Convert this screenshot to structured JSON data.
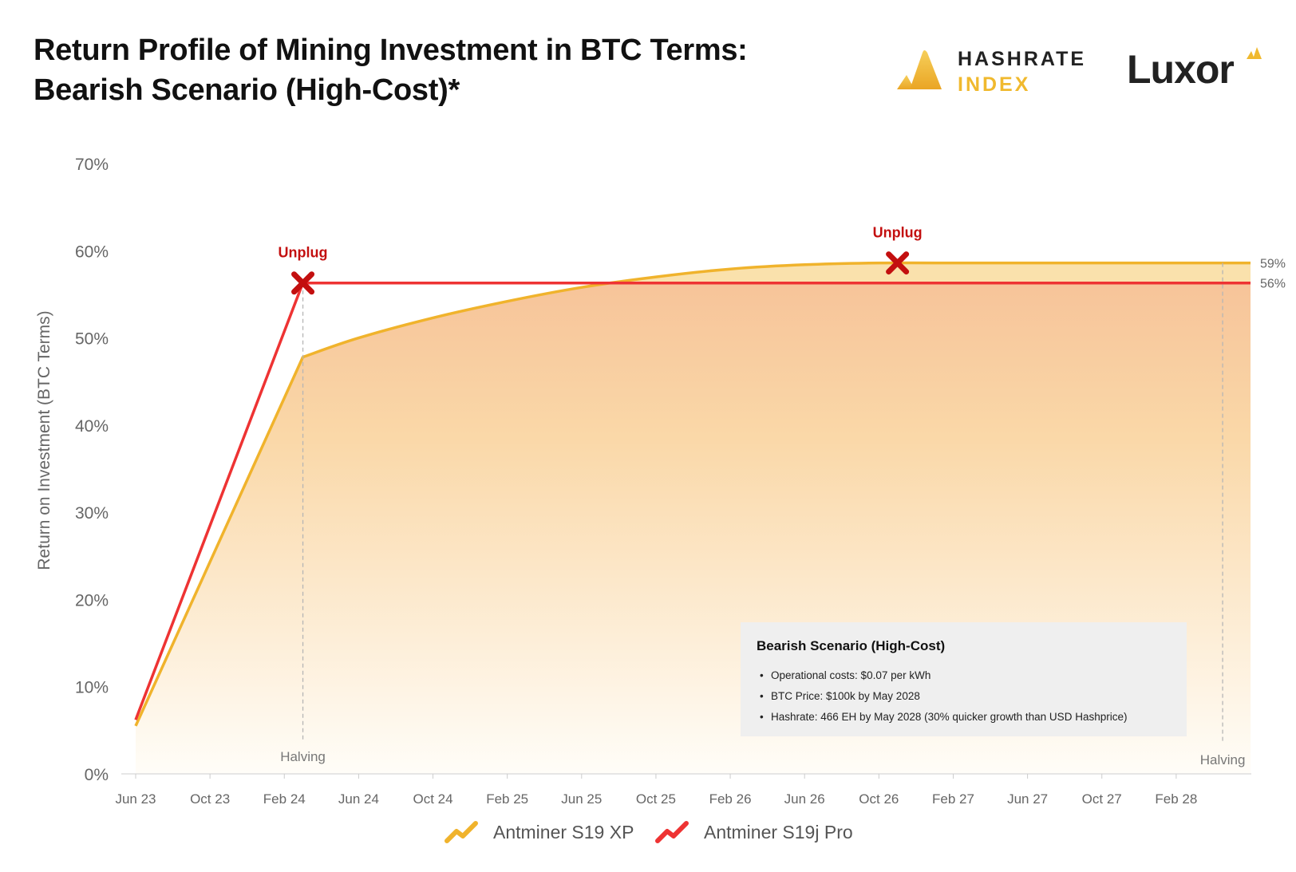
{
  "title": {
    "line1": "Return Profile of Mining Investment in BTC Terms:",
    "line2": "Bearish Scenario (High-Cost)*"
  },
  "brands": {
    "hashrate_line1": "HASHRATE",
    "hashrate_line2": "INDEX",
    "luxor": "Luxor"
  },
  "colors": {
    "s19xp": "#f0b32c",
    "s19jpro": "#ee3333",
    "unplug": "#c30f0f",
    "axis_text": "#666666"
  },
  "chart_data": {
    "type": "line",
    "ylabel": "Return on Investment (BTC Terms)",
    "ylim": [
      0,
      70
    ],
    "y_ticks": [
      "0%",
      "10%",
      "20%",
      "30%",
      "40%",
      "50%",
      "60%",
      "70%"
    ],
    "x_range_months": [
      0,
      60
    ],
    "x_ticks": [
      {
        "label": "Jun 23",
        "month": 0
      },
      {
        "label": "Oct 23",
        "month": 4
      },
      {
        "label": "Feb 24",
        "month": 8
      },
      {
        "label": "Jun 24",
        "month": 12
      },
      {
        "label": "Oct 24",
        "month": 16
      },
      {
        "label": "Feb 25",
        "month": 20
      },
      {
        "label": "Jun 25",
        "month": 24
      },
      {
        "label": "Oct 25",
        "month": 28
      },
      {
        "label": "Feb 26",
        "month": 32
      },
      {
        "label": "Jun 26",
        "month": 36
      },
      {
        "label": "Oct 26",
        "month": 40
      },
      {
        "label": "Feb 27",
        "month": 44
      },
      {
        "label": "Jun 27",
        "month": 48
      },
      {
        "label": "Oct 27",
        "month": 52
      },
      {
        "label": "Feb 28",
        "month": 56
      }
    ],
    "series": [
      {
        "name": "Antminer S19 XP",
        "points": [
          [
            0,
            5.5
          ],
          [
            9,
            47.8
          ],
          [
            12,
            50.0
          ],
          [
            16,
            52.3
          ],
          [
            20,
            54.2
          ],
          [
            24,
            55.8
          ],
          [
            28,
            57.0
          ],
          [
            32,
            57.9
          ],
          [
            36,
            58.4
          ],
          [
            40,
            58.6
          ],
          [
            44,
            58.6
          ],
          [
            60,
            58.6
          ]
        ],
        "end_label": "59%"
      },
      {
        "name": "Antminer S19j Pro",
        "points": [
          [
            0,
            6.2
          ],
          [
            9,
            56.3
          ],
          [
            60,
            56.3
          ]
        ],
        "end_label": "56%"
      }
    ],
    "annotations": [
      {
        "type": "unplug",
        "label": "Unplug",
        "month": 9,
        "value": 56.3
      },
      {
        "type": "unplug",
        "label": "Unplug",
        "month": 41,
        "value": 58.6
      },
      {
        "type": "halving",
        "label": "Halving",
        "month": 9
      },
      {
        "type": "halving",
        "label": "Halving",
        "month": 58.5
      }
    ]
  },
  "info_box": {
    "heading": "Bearish Scenario (High-Cost)",
    "items": [
      "Operational costs: $0.07 per kWh",
      "BTC Price: $100k by May 2028",
      "Hashrate: 466 EH by May 2028 (30% quicker growth than USD Hashprice)"
    ]
  },
  "legend": {
    "items": [
      "Antminer S19 XP",
      "Antminer S19j Pro"
    ]
  }
}
